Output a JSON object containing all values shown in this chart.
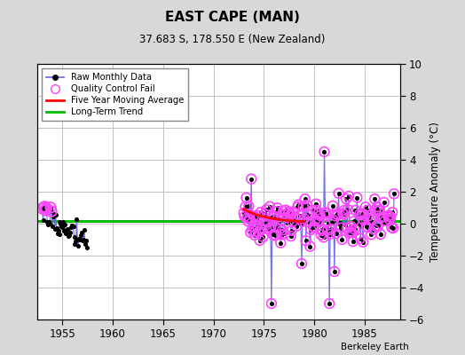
{
  "title": "EAST CAPE (MAN)",
  "subtitle": "37.683 S, 178.550 E (New Zealand)",
  "ylabel": "Temperature Anomaly (°C)",
  "credit": "Berkeley Earth",
  "xlim": [
    1952.5,
    1988.5
  ],
  "ylim": [
    -6,
    10
  ],
  "yticks": [
    -6,
    -4,
    -2,
    0,
    2,
    4,
    6,
    8,
    10
  ],
  "xticks": [
    1955,
    1960,
    1965,
    1970,
    1975,
    1980,
    1985
  ],
  "bg_color": "#d8d8d8",
  "plot_bg": "#ffffff",
  "grid_color": "#b8b8b8",
  "raw_color": "#4444cc",
  "raw_line_color": "#6666dd",
  "qc_color": "#ff44ff",
  "ma_color": "#ff0000",
  "trend_color": "#00bb00",
  "trend_y": 0.18,
  "early_seed": 17,
  "dense_seed": 42
}
